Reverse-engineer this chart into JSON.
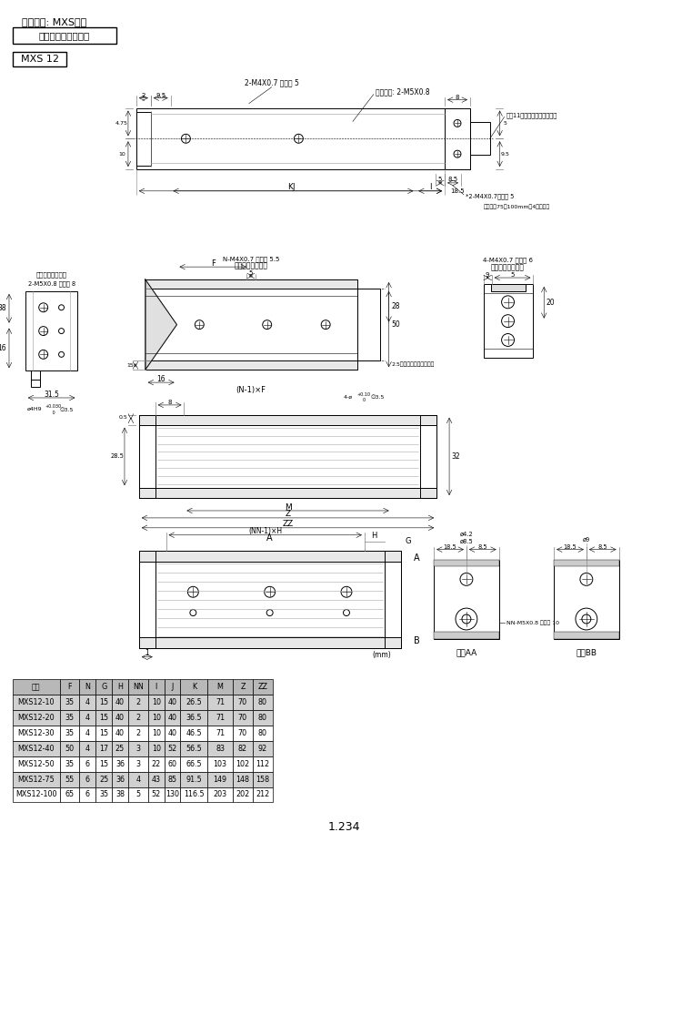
{
  "title": "气动滑台: MXS系列",
  "subtitle": "外形尺寸图（毫米）",
  "model": "MXS 12",
  "bg_color": "#ffffff",
  "table_headers": [
    "型号",
    "F",
    "N",
    "G",
    "H",
    "NN",
    "I",
    "J",
    "K",
    "M",
    "Z",
    "ZZ"
  ],
  "table_data": [
    [
      "MXS12-10",
      "35",
      "4",
      "15",
      "40",
      "2",
      "10",
      "40",
      "26.5",
      "71",
      "70",
      "80"
    ],
    [
      "MXS12-20",
      "35",
      "4",
      "15",
      "40",
      "2",
      "10",
      "40",
      "36.5",
      "71",
      "70",
      "80"
    ],
    [
      "MXS12-30",
      "35",
      "4",
      "15",
      "40",
      "2",
      "10",
      "40",
      "46.5",
      "71",
      "70",
      "80"
    ],
    [
      "MXS12-40",
      "50",
      "4",
      "17",
      "25",
      "3",
      "10",
      "52",
      "56.5",
      "83",
      "82",
      "92"
    ],
    [
      "MXS12-50",
      "35",
      "6",
      "15",
      "36",
      "3",
      "22",
      "60",
      "66.5",
      "103",
      "102",
      "112"
    ],
    [
      "MXS12-75",
      "55",
      "6",
      "25",
      "36",
      "4",
      "43",
      "85",
      "91.5",
      "149",
      "148",
      "158"
    ],
    [
      "MXS12-100",
      "65",
      "6",
      "35",
      "38",
      "5",
      "52",
      "130",
      "116.5",
      "203",
      "202",
      "212"
    ]
  ],
  "table_shaded_rows": [
    0,
    1,
    3,
    5
  ],
  "page_number": "1.234",
  "cross_section_labels": [
    "截面AA",
    "截面BB"
  ]
}
